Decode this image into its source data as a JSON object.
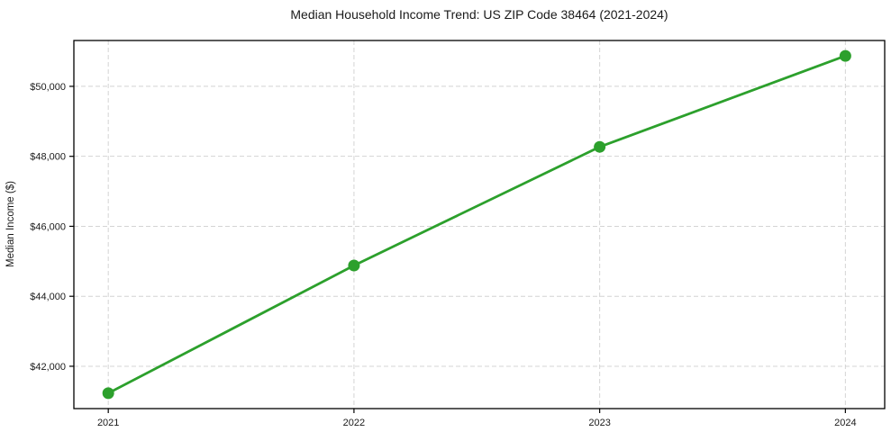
{
  "chart_data": {
    "type": "line",
    "title": "Median Household Income Trend: US ZIP Code 38464 (2021-2024)",
    "xlabel": "",
    "ylabel": "Median Income ($)",
    "x": [
      2021,
      2022,
      2023,
      2024
    ],
    "xtick_labels": [
      "2021",
      "2022",
      "2023",
      "2024"
    ],
    "series": [
      {
        "name": "Median Income",
        "values": [
          41230,
          44880,
          48270,
          50870
        ]
      }
    ],
    "yticks": [
      42000,
      44000,
      46000,
      48000,
      50000
    ],
    "ytick_labels": [
      "$42,000",
      "$44,000",
      "$46,000",
      "$48,000",
      "$50,000"
    ],
    "xlim": [
      2020.86,
      2024.16
    ],
    "ylim": [
      40790,
      51310
    ],
    "grid": true,
    "legend_position": "none",
    "line_color": "#2ca02c",
    "marker": "circle",
    "marker_radius": 6.5,
    "text_color": "#1a1a1a",
    "grid_color": "#d4d4d4",
    "frame_color": "#000000"
  }
}
